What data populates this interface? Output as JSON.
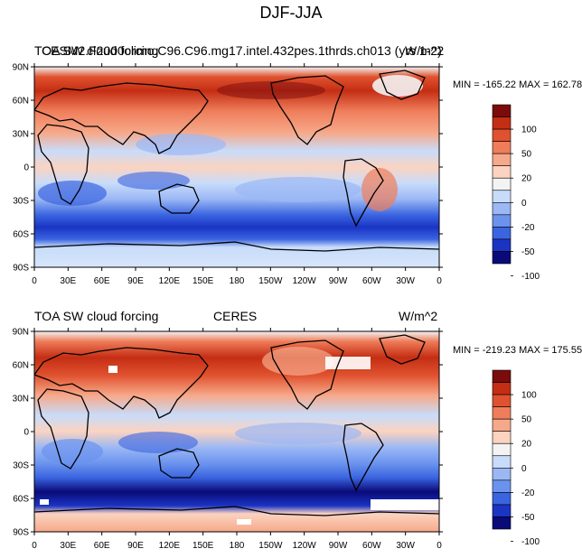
{
  "figure": {
    "title": "DJF-JJA"
  },
  "colors": {
    "scale": [
      "#0a0a78",
      "#1a34c4",
      "#3a64e0",
      "#6b93ee",
      "#9bb8f5",
      "#c8dcfa",
      "#f3f3f3",
      "#fbd3c0",
      "#f6a98a",
      "#ef7d5a",
      "#e0522f",
      "#c42e14",
      "#7a0c0c"
    ],
    "coast": "#000000"
  },
  "colorbar": {
    "labels": [
      "100",
      "50",
      "20",
      "0",
      "-20",
      "-50",
      "-100"
    ]
  },
  "axes": {
    "lat_labels": [
      "90N",
      "60N",
      "30N",
      "0",
      "30S",
      "60S",
      "90S"
    ],
    "lon_labels": [
      "0",
      "30E",
      "60E",
      "90E",
      "120E",
      "150E",
      "180",
      "150W",
      "120W",
      "90W",
      "60W",
      "30W",
      "0"
    ]
  },
  "panels": [
    {
      "left_title": "TOA SW cloud forcing",
      "center_title": "CESM2.F2000climo.C96.C96.mg17.intel.432pes.1thrds.ch013 (yrs 1-2)",
      "units": "W/m^2",
      "stats": "MIN = -165.22 MAX = 162.78",
      "min": -165.22,
      "max": 162.78
    },
    {
      "left_title": "TOA SW cloud forcing",
      "center_title": "CERES",
      "units": "W/m^2",
      "stats": "MIN = -219.23 MAX = 175.55",
      "min": -219.23,
      "max": 175.55
    }
  ]
}
